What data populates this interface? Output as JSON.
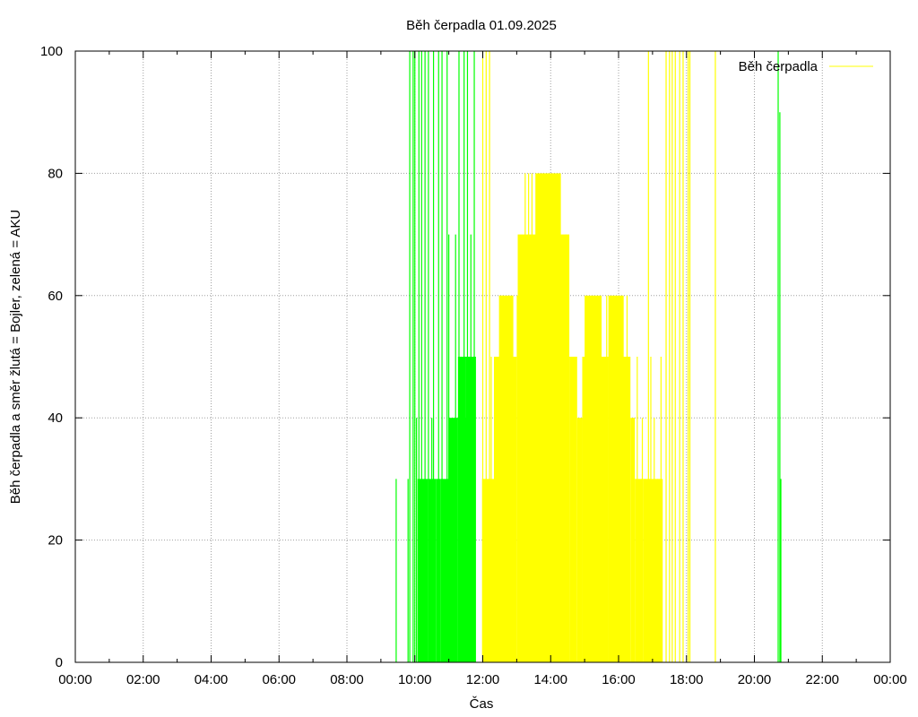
{
  "chart_data": {
    "type": "bar",
    "title": "Běh čerpadla 01.09.2025",
    "xlabel": "Čas",
    "ylabel": "Běh čerpadla a směr žlutá = Bojler, zelená = AKU",
    "xlim": [
      0,
      24
    ],
    "ylim": [
      0,
      100
    ],
    "x_unit": "hours",
    "x_ticks": [
      "00:00",
      "02:00",
      "04:00",
      "06:00",
      "08:00",
      "10:00",
      "12:00",
      "14:00",
      "16:00",
      "18:00",
      "20:00",
      "22:00",
      "00:00"
    ],
    "y_ticks": [
      "0",
      "20",
      "40",
      "60",
      "80",
      "100"
    ],
    "grid": true,
    "legend": {
      "position": "top-right",
      "label": "Běh čerpadla",
      "color": "#ffff00"
    },
    "colors": {
      "bojler": "#ffff00",
      "aku": "#00ff00"
    },
    "series": [
      {
        "color": "#ffff00",
        "blocks": [
          {
            "from": 11.98,
            "to": 12.33,
            "value": 30
          },
          {
            "from": 12.33,
            "to": 13.0,
            "value": 50
          },
          {
            "from": 12.48,
            "to": 12.9,
            "value": 60
          },
          {
            "from": 13.0,
            "to": 13.55,
            "value": 60
          },
          {
            "from": 13.03,
            "to": 14.55,
            "value": 70
          },
          {
            "from": 13.55,
            "to": 14.3,
            "value": 80
          },
          {
            "from": 14.55,
            "to": 14.78,
            "value": 50
          },
          {
            "from": 14.78,
            "to": 14.93,
            "value": 40
          },
          {
            "from": 14.93,
            "to": 15.25,
            "value": 50
          },
          {
            "from": 15.0,
            "to": 15.5,
            "value": 60
          },
          {
            "from": 15.25,
            "to": 15.7,
            "value": 50
          },
          {
            "from": 15.7,
            "to": 16.15,
            "value": 60
          },
          {
            "from": 15.7,
            "to": 16.35,
            "value": 50
          },
          {
            "from": 16.35,
            "to": 16.48,
            "value": 40
          },
          {
            "from": 16.48,
            "to": 16.72,
            "value": 30
          },
          {
            "from": 16.72,
            "to": 16.95,
            "value": 30
          },
          {
            "from": 16.95,
            "to": 17.3,
            "value": 30
          }
        ],
        "spikes": [
          {
            "x": 12.0,
            "value": 100
          },
          {
            "x": 12.1,
            "value": 100
          },
          {
            "x": 12.2,
            "value": 100
          },
          {
            "x": 12.25,
            "value": 50
          },
          {
            "x": 12.5,
            "value": 60
          },
          {
            "x": 12.58,
            "value": 60
          },
          {
            "x": 12.68,
            "value": 50
          },
          {
            "x": 12.78,
            "value": 60
          },
          {
            "x": 13.25,
            "value": 80
          },
          {
            "x": 13.35,
            "value": 80
          },
          {
            "x": 13.45,
            "value": 80
          },
          {
            "x": 14.45,
            "value": 70
          },
          {
            "x": 15.65,
            "value": 60
          },
          {
            "x": 16.25,
            "value": 60
          },
          {
            "x": 16.55,
            "value": 50
          },
          {
            "x": 16.7,
            "value": 40
          },
          {
            "x": 16.78,
            "value": 30
          },
          {
            "x": 16.88,
            "value": 100
          },
          {
            "x": 16.95,
            "value": 50
          },
          {
            "x": 17.05,
            "value": 40
          },
          {
            "x": 17.15,
            "value": 30
          },
          {
            "x": 17.25,
            "value": 50
          },
          {
            "x": 17.4,
            "value": 100
          },
          {
            "x": 17.5,
            "value": 100
          },
          {
            "x": 17.58,
            "value": 100
          },
          {
            "x": 17.67,
            "value": 100
          },
          {
            "x": 17.8,
            "value": 100
          },
          {
            "x": 17.9,
            "value": 100
          },
          {
            "x": 18.05,
            "value": 100
          },
          {
            "x": 18.1,
            "value": 100
          },
          {
            "x": 18.85,
            "value": 100
          }
        ]
      },
      {
        "color": "#00ff00",
        "blocks": [
          {
            "from": 10.08,
            "to": 10.38,
            "value": 30
          },
          {
            "from": 10.38,
            "to": 10.55,
            "value": 30
          },
          {
            "from": 10.55,
            "to": 10.62,
            "value": 30
          },
          {
            "from": 10.62,
            "to": 10.75,
            "value": 30
          },
          {
            "from": 10.75,
            "to": 11.0,
            "value": 30
          },
          {
            "from": 11.0,
            "to": 11.25,
            "value": 40
          },
          {
            "from": 11.25,
            "to": 11.55,
            "value": 40
          },
          {
            "from": 11.27,
            "to": 11.5,
            "value": 50
          },
          {
            "from": 11.5,
            "to": 11.8,
            "value": 50
          }
        ],
        "spikes": [
          {
            "x": 9.45,
            "value": 30
          },
          {
            "x": 9.8,
            "value": 30
          },
          {
            "x": 9.85,
            "value": 100
          },
          {
            "x": 9.95,
            "value": 100
          },
          {
            "x": 10.0,
            "value": 100
          },
          {
            "x": 10.05,
            "value": 40
          },
          {
            "x": 10.12,
            "value": 100
          },
          {
            "x": 10.2,
            "value": 100
          },
          {
            "x": 10.3,
            "value": 100
          },
          {
            "x": 10.4,
            "value": 100
          },
          {
            "x": 10.5,
            "value": 40
          },
          {
            "x": 10.55,
            "value": 100
          },
          {
            "x": 10.7,
            "value": 100
          },
          {
            "x": 10.8,
            "value": 100
          },
          {
            "x": 10.95,
            "value": 100
          },
          {
            "x": 11.0,
            "value": 70
          },
          {
            "x": 11.2,
            "value": 70
          },
          {
            "x": 11.3,
            "value": 100
          },
          {
            "x": 11.45,
            "value": 100
          },
          {
            "x": 11.55,
            "value": 100
          },
          {
            "x": 11.65,
            "value": 70
          },
          {
            "x": 11.75,
            "value": 100
          },
          {
            "x": 20.7,
            "value": 100
          },
          {
            "x": 20.75,
            "value": 90
          },
          {
            "x": 20.78,
            "value": 30
          }
        ]
      }
    ]
  }
}
